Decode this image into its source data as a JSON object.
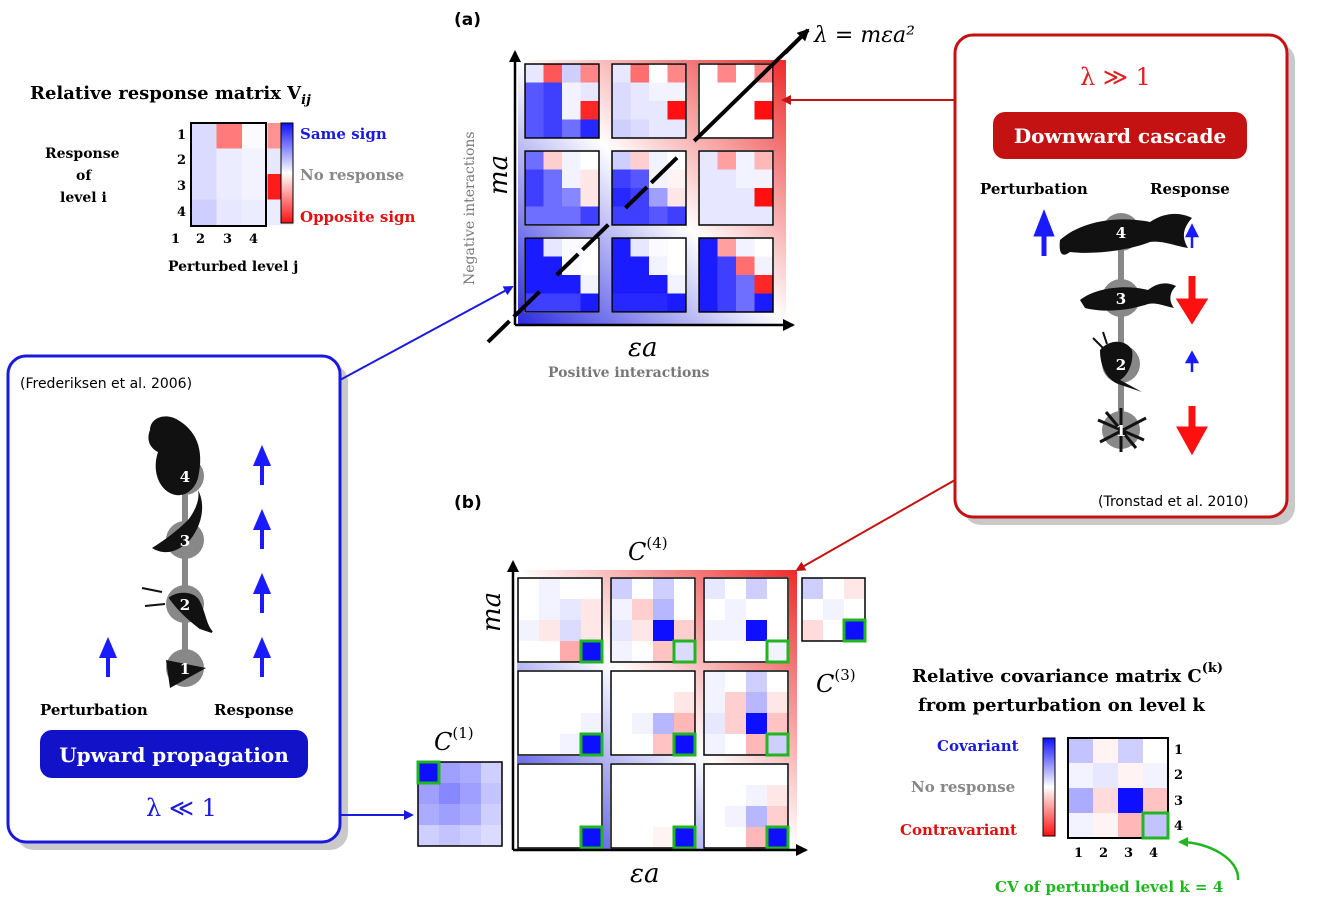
{
  "panel_a": {
    "label": "(a)",
    "lambda_label": "λ = mεa²",
    "y_axis_symbol": "ma",
    "y_axis_desc": "Negative interactions",
    "x_axis_symbol": "εa",
    "x_axis_desc": "Positive interactions"
  },
  "panel_b": {
    "label": "(b)",
    "y_axis_symbol": "ma",
    "x_axis_symbol": "εa",
    "c4_label": "C",
    "c4_sup": "(4)",
    "c3_label": "C",
    "c3_sup": "(3)",
    "c1_label": "C",
    "c1_sup": "(1)"
  },
  "response_legend": {
    "title": "Relative response matrix V",
    "title_sub": "ij",
    "row_title_1": "Response",
    "row_title_2": "of",
    "row_title_3": "level i",
    "col_title": "Perturbed level j",
    "row_ticks": [
      "1",
      "2",
      "3",
      "4"
    ],
    "col_ticks": [
      "1",
      "2",
      "3",
      "4"
    ],
    "same_sign": "Same sign",
    "no_response": "No response",
    "opposite_sign": "Opposite sign",
    "colors": {
      "same": "#1a1aff",
      "none": "#f2f2f2",
      "opposite": "#ff1010"
    }
  },
  "covariance_legend": {
    "title_1": "Relative covariance matrix C",
    "title_sup": "(k)",
    "title_2": "from perturbation on level k",
    "covariant": "Covariant",
    "no_response": "No response",
    "contravariant": "Contravariant",
    "row_ticks": [
      "1",
      "2",
      "3",
      "4"
    ],
    "col_ticks": [
      "1",
      "2",
      "3",
      "4"
    ],
    "cv_note": "CV of perturbed level k = 4",
    "highlight_color": "#21b521"
  },
  "downward_box": {
    "lambda": "λ ≫ 1",
    "button": "Downward cascade",
    "perturbation": "Perturbation",
    "response": "Response",
    "levels": [
      "4",
      "3",
      "2",
      "1"
    ],
    "citation": "(Tronstad et al. 2010)"
  },
  "upward_box": {
    "citation": "(Frederiksen et al. 2006)",
    "levels": [
      "4",
      "3",
      "2",
      "1"
    ],
    "perturbation": "Perturbation",
    "response": "Response",
    "button": "Upward propagation",
    "lambda": "λ ≪ 1"
  },
  "response_matrix": [
    [
      0.15,
      -0.55,
      0.02,
      -0.45
    ],
    [
      0.15,
      0.08,
      0.05,
      0.1
    ],
    [
      0.15,
      0.08,
      0.05,
      -0.95
    ],
    [
      0.2,
      0.1,
      0.08,
      0.08
    ]
  ],
  "cov_matrix": [
    [
      0.25,
      -0.05,
      0.2,
      0.0
    ],
    [
      0.05,
      0.1,
      -0.05,
      0.05
    ],
    [
      0.35,
      -0.15,
      1.0,
      -0.25
    ],
    [
      0.05,
      -0.05,
      -0.3,
      0.25
    ]
  ],
  "grid_a": [
    [
      [
        [
          0.1,
          -0.7,
          0.2,
          -0.5
        ],
        [
          0.7,
          0.8,
          0.05,
          0.1
        ],
        [
          0.7,
          0.8,
          0.05,
          -0.9
        ],
        [
          0.7,
          0.8,
          0.6,
          0.9
        ]
      ],
      [
        [
          0.1,
          -0.6,
          0,
          -0.5
        ],
        [
          0.15,
          0.1,
          0.05,
          0.05
        ],
        [
          0.15,
          0.1,
          0.1,
          -1.0
        ],
        [
          0.2,
          0.15,
          0.1,
          0.1
        ]
      ],
      [
        [
          0,
          -0.5,
          0,
          -0.5
        ],
        [
          0,
          0,
          0,
          0
        ],
        [
          0,
          0,
          0,
          -1.0
        ],
        [
          0,
          0,
          0,
          0
        ]
      ]
    ],
    [
      [
        [
          0.6,
          -0.2,
          0.05,
          0
        ],
        [
          0.8,
          0.6,
          0.05,
          -0.1
        ],
        [
          0.8,
          0.6,
          0.5,
          -0.1
        ],
        [
          0.6,
          0.6,
          0.6,
          0.8
        ]
      ],
      [
        [
          0.2,
          -0.2,
          0.05,
          0
        ],
        [
          0.8,
          0.7,
          0.05,
          -0.05
        ],
        [
          0.9,
          0.8,
          0.4,
          -0.1
        ],
        [
          0.8,
          0.8,
          0.7,
          0.8
        ]
      ],
      [
        [
          0.1,
          -0.4,
          0.05,
          -0.3
        ],
        [
          0.1,
          0.1,
          0.05,
          0.05
        ],
        [
          0.1,
          0.1,
          0.1,
          -1.0
        ],
        [
          0.1,
          0.1,
          0.1,
          0.1
        ]
      ]
    ],
    [
      [
        [
          0.95,
          0.1,
          0.02,
          0
        ],
        [
          0.95,
          0.95,
          0.02,
          0
        ],
        [
          0.95,
          0.95,
          0.95,
          0.05
        ],
        [
          0.8,
          0.8,
          0.8,
          0.95
        ]
      ],
      [
        [
          0.95,
          0.1,
          0.02,
          0
        ],
        [
          0.95,
          0.95,
          0.05,
          0
        ],
        [
          0.95,
          0.95,
          0.95,
          0.05
        ],
        [
          0.9,
          0.9,
          0.9,
          0.95
        ]
      ],
      [
        [
          0.95,
          -0.4,
          0.05,
          0
        ],
        [
          0.95,
          0.8,
          -0.6,
          0.05
        ],
        [
          0.95,
          0.8,
          0.6,
          -0.9
        ],
        [
          0.95,
          0.8,
          0.6,
          0.95
        ]
      ]
    ]
  ],
  "grid_b": [
    [
      [
        [
          0,
          0.05,
          0,
          0
        ],
        [
          0,
          0.05,
          0.1,
          -0.1
        ],
        [
          0.05,
          -0.1,
          0.15,
          -0.1
        ],
        [
          0,
          0,
          -0.35,
          1.0
        ]
      ],
      [
        [
          0.2,
          0,
          0.2,
          0
        ],
        [
          0.05,
          -0.2,
          0.3,
          0
        ],
        [
          0.1,
          -0.1,
          1.0,
          -0.2
        ],
        [
          0.05,
          0,
          -0.25,
          0.15
        ]
      ],
      [
        [
          0.1,
          0,
          0.2,
          0
        ],
        [
          0,
          0.05,
          0,
          0
        ],
        [
          0.05,
          0.05,
          1.0,
          0
        ],
        [
          0,
          0,
          0,
          0.05
        ]
      ]
    ],
    [
      [
        [
          0,
          0,
          0,
          0
        ],
        [
          0,
          0,
          0,
          0
        ],
        [
          0,
          0,
          0,
          0.05
        ],
        [
          0,
          0,
          0.05,
          1.0
        ]
      ],
      [
        [
          0,
          0,
          0,
          0
        ],
        [
          0,
          0,
          0,
          -0.1
        ],
        [
          0,
          0.05,
          0.3,
          -0.3
        ],
        [
          0,
          0,
          -0.25,
          1.0
        ]
      ],
      [
        [
          0.05,
          0,
          0.2,
          0
        ],
        [
          0.05,
          -0.2,
          0.3,
          -0.1
        ],
        [
          0.1,
          -0.2,
          1.0,
          -0.25
        ],
        [
          0.05,
          0,
          -0.3,
          0.2
        ]
      ]
    ],
    [
      [
        [
          0,
          0,
          0,
          0
        ],
        [
          0,
          0,
          0,
          0
        ],
        [
          0,
          0,
          0,
          0
        ],
        [
          0,
          0,
          0,
          1.0
        ]
      ],
      [
        [
          0,
          0,
          0,
          0
        ],
        [
          0,
          0,
          0,
          0
        ],
        [
          0,
          0,
          0,
          0
        ],
        [
          0,
          0,
          -0.05,
          1.0
        ]
      ],
      [
        [
          0,
          0,
          0,
          0
        ],
        [
          0,
          0,
          0.05,
          -0.1
        ],
        [
          0,
          0.05,
          0.3,
          -0.2
        ],
        [
          0,
          0,
          -0.3,
          1.0
        ]
      ]
    ]
  ],
  "c3_matrix": [
    [
      0.2,
      0,
      -0.1
    ],
    [
      0,
      0.05,
      0
    ],
    [
      -0.15,
      0,
      1.0
    ]
  ],
  "c1_matrix": [
    [
      1.0,
      0.4,
      0.35,
      0.2
    ],
    [
      0.4,
      0.5,
      0.4,
      0.25
    ],
    [
      0.35,
      0.4,
      0.35,
      0.2
    ],
    [
      0.2,
      0.25,
      0.2,
      0.15
    ]
  ]
}
